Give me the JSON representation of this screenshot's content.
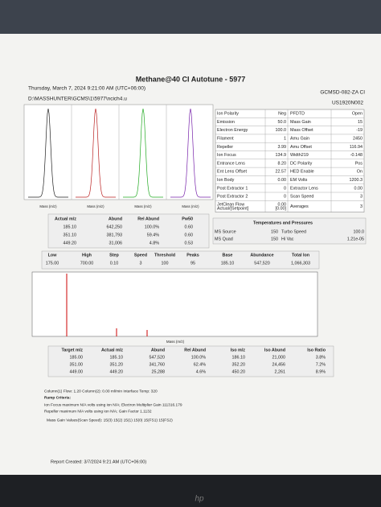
{
  "header": {
    "title": "Methane@40 CI Autotune - 5977",
    "datetime": "Thursday, March 7, 2024 9:21:00 AM  (UTC+06:00)",
    "path": "D:\\MASSHUNTER\\GCMS\\1\\5977\\ncich4.u",
    "instrument": "GCMSD-082-ZA CI",
    "serial": "US1920N002"
  },
  "tune_plot": {
    "axis_labels": [
      "Mass (m/z)",
      "Mass (m/z)",
      "Mass (m/z)",
      "Mass (m/z)"
    ]
  },
  "parameters": {
    "rows": [
      [
        "Ion Polarity",
        "Neg",
        "PFDTD",
        "Open"
      ],
      [
        "Emission",
        "50.0",
        "Mass Gain",
        "15"
      ],
      [
        "Electron Energy",
        "100.0",
        "Mass Offset",
        "-19"
      ],
      [
        "Filament",
        "1",
        "Amu Gain",
        "2450"
      ],
      [
        "Repeller",
        "3.99",
        "Amu Offset",
        "116.94"
      ],
      [
        "Ion Focus",
        "134.9",
        "Width219",
        "-0.148"
      ],
      [
        "Entrance Lens",
        "8.20",
        "DC Polarity",
        "Pos"
      ],
      [
        "Ent Lens Offset",
        "22.57",
        "HED Enable",
        "On"
      ],
      [
        "Ion Body",
        "0.00",
        "EM Volts",
        "1200.3"
      ],
      [
        "Post Extractor 1",
        "0",
        "Extractor Lens",
        "0.00"
      ],
      [
        "Post Extractor 2",
        "0",
        "Scan Speed",
        "3"
      ],
      [
        [
          "JetClean Flow",
          "Actual/[Setpoint]"
        ],
        [
          "0.00",
          "[0.00]"
        ],
        "Averages",
        "3"
      ]
    ]
  },
  "peaks": {
    "header": [
      "Actual m/z",
      "Abund",
      "Rel Abund",
      "Pw50"
    ],
    "rows": [
      [
        "185.10",
        "642,250",
        "100.0%",
        "0.60"
      ],
      [
        "351.10",
        "381,793",
        "59.4%",
        "0.60"
      ],
      [
        "449.20",
        "31,006",
        "4.8%",
        "0.53"
      ]
    ]
  },
  "temps": {
    "title": "Temperatures and Pressures",
    "rows": [
      [
        "MS Source",
        "150",
        "Turbo Speed",
        "100.0"
      ],
      [
        "MS Quad",
        "150",
        "Hi Vac",
        "1.21e-05"
      ]
    ]
  },
  "scan": {
    "header": [
      "Low",
      "High",
      "Step",
      "Speed",
      "Threshold",
      "Peaks",
      "Base",
      "Abundance",
      "Total Ion"
    ],
    "row": [
      "175.00",
      "700.00",
      "0.10",
      "3",
      "100",
      "95",
      "185.10",
      "547,520",
      "1,066,303"
    ]
  },
  "spectrum": {
    "x_axis_label": "Mass (m/z)"
  },
  "iso": {
    "header": [
      "Target m/z",
      "Actual m/z",
      "Abund",
      "Rel Abund",
      "Iso m/z",
      "Iso Abund",
      "Iso Ratio"
    ],
    "rows": [
      [
        "185.00",
        "185.10",
        "547,520",
        "100.0%",
        "186.10",
        "21,000",
        "3.8%"
      ],
      [
        "351.00",
        "351.20",
        "341,760",
        "62.4%",
        "352.20",
        "24,456",
        "7.2%"
      ],
      [
        "449.00",
        "449.20",
        "25,288",
        "4.6%",
        "450.20",
        "2,261",
        "8.9%"
      ]
    ]
  },
  "notes": [
    "Column(1) Flow:  1.20   Column(2):  0.00  ml/min    Interface Temp:  320",
    "Ramp Criteria:",
    "Ion Focus maximum    N/A  volts using ion  N/A;    Electron Multiplier Gain 111316.179",
    "Repeller maximum    N/A  volts using ion  N/A;   Gain Factor   1.1132",
    "Mass Gain Values(Scan Speed):   15(3)   15(2)   15(1)   15(0)   15(FS1)   15(FS2)"
  ],
  "report_created": "Report Created:  3/7/2024 9:21 AM  (UTC+06:00)"
}
